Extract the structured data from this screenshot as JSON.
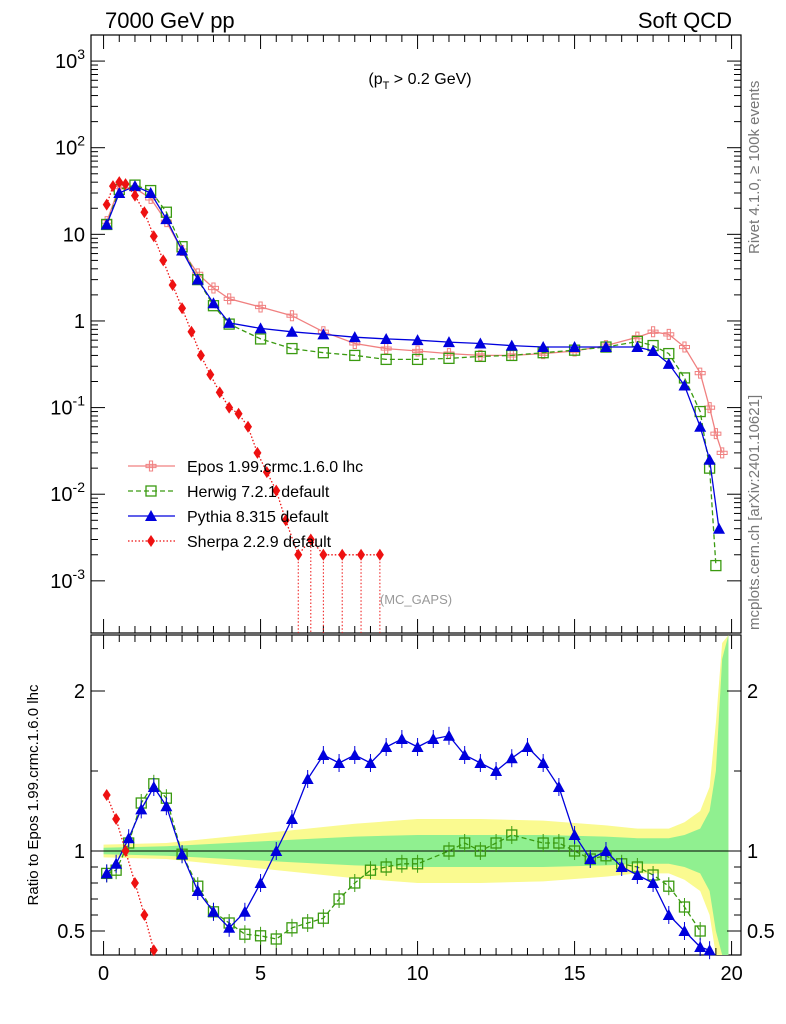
{
  "header": {
    "left": "7000 GeV pp",
    "right": "Soft QCD"
  },
  "side_labels": {
    "rivet": "Rivet 4.1.0, ≥ 100k events",
    "mcplots": "mcplots.cern.ch [arXiv:2401.10621]"
  },
  "colors": {
    "epos": "#f08080",
    "herwig": "#3a9a10",
    "pythia": "#0000dd",
    "sherpa": "#ee1111",
    "band_inner": "#90f090",
    "band_outer": "#fafa90"
  },
  "chart_data": [
    {
      "type": "line",
      "yscale": "log",
      "annotation": "(p_T > 0.2 GeV)",
      "watermark": "(MC_GAPS)",
      "xlim": [
        -0.4,
        20.3
      ],
      "ylim": [
        0.00025,
        2000
      ],
      "ytick_labels": [
        "10^{-3}",
        "10^{-2}",
        "10^{-1}",
        "1",
        "10",
        "10^{2}",
        "10^{3}"
      ],
      "legend_position": "lower-left",
      "series": [
        {
          "name": "Epos 1.99.crmc.1.6.0 lhc",
          "marker": "cross",
          "x": [
            0.1,
            0.5,
            1.0,
            1.5,
            2.0,
            2.5,
            3.0,
            3.5,
            4.0,
            5.0,
            6.0,
            7.0,
            8.0,
            9.0,
            10.0,
            11.0,
            12.0,
            13.0,
            14.0,
            15.0,
            16.0,
            17.0,
            17.5,
            18.0,
            18.5,
            19.0,
            19.3,
            19.5,
            19.7
          ],
          "y": [
            14,
            35,
            34,
            26,
            14,
            6.5,
            3.5,
            2.4,
            1.8,
            1.45,
            1.15,
            0.75,
            0.55,
            0.48,
            0.45,
            0.42,
            0.4,
            0.4,
            0.42,
            0.45,
            0.52,
            0.65,
            0.75,
            0.7,
            0.5,
            0.25,
            0.1,
            0.05,
            0.03
          ]
        },
        {
          "name": "Herwig 7.2.1 default",
          "marker": "open-square",
          "x": [
            0.1,
            0.5,
            1.0,
            1.5,
            2.0,
            2.5,
            3.0,
            3.5,
            4.0,
            5.0,
            6.0,
            7.0,
            8.0,
            9.0,
            10.0,
            11.0,
            12.0,
            13.0,
            14.0,
            15.0,
            16.0,
            17.0,
            17.5,
            18.0,
            18.5,
            19.0,
            19.3,
            19.5
          ],
          "y": [
            13,
            33,
            37,
            32,
            18,
            7.2,
            3.0,
            1.5,
            0.92,
            0.62,
            0.48,
            0.43,
            0.4,
            0.36,
            0.36,
            0.37,
            0.39,
            0.4,
            0.43,
            0.46,
            0.5,
            0.58,
            0.52,
            0.42,
            0.22,
            0.09,
            0.02,
            0.0015
          ]
        },
        {
          "name": "Pythia 8.315 default",
          "marker": "filled-triangle",
          "x": [
            0.1,
            0.5,
            1.0,
            1.5,
            2.0,
            2.5,
            3.0,
            3.5,
            4.0,
            5.0,
            6.0,
            7.0,
            8.0,
            9.0,
            10.0,
            11.0,
            12.0,
            13.0,
            14.0,
            15.0,
            16.0,
            17.0,
            17.5,
            18.0,
            18.5,
            19.0,
            19.3,
            19.6
          ],
          "y": [
            13,
            30,
            36,
            30,
            15,
            6.5,
            3.0,
            1.6,
            0.95,
            0.82,
            0.75,
            0.7,
            0.65,
            0.62,
            0.6,
            0.57,
            0.55,
            0.52,
            0.5,
            0.5,
            0.5,
            0.5,
            0.45,
            0.32,
            0.18,
            0.06,
            0.025,
            0.004
          ]
        },
        {
          "name": "Sherpa 2.2.9 default",
          "marker": "filled-diamond",
          "x": [
            0.1,
            0.3,
            0.5,
            0.7,
            1.0,
            1.3,
            1.6,
            1.9,
            2.2,
            2.5,
            2.8,
            3.1,
            3.4,
            3.7,
            4.0,
            4.3,
            4.6,
            4.9,
            5.2,
            5.5,
            5.8,
            6.2,
            6.6,
            7.0,
            7.6,
            8.2,
            8.8
          ],
          "y": [
            22,
            36,
            40,
            38,
            28,
            18,
            9.5,
            5.0,
            2.6,
            1.4,
            0.75,
            0.4,
            0.24,
            0.15,
            0.1,
            0.085,
            0.06,
            0.03,
            0.018,
            0.011,
            0.005,
            0.002,
            0.003,
            0.002,
            0.002,
            0.002,
            0.002
          ]
        }
      ]
    },
    {
      "type": "line",
      "ylabel": "Ratio to Epos 1.99.crmc.1.6.0 lhc",
      "xlim": [
        -0.4,
        20.3
      ],
      "ylim": [
        0.35,
        2.35
      ],
      "xtick_labels": [
        "0",
        "5",
        "10",
        "15",
        "20"
      ],
      "ytick_labels": [
        "0.5",
        "1",
        "2"
      ],
      "reference_band": {
        "x": [
          0,
          2,
          4,
          6,
          8,
          10,
          12,
          14,
          16,
          17,
          18,
          18.5,
          19,
          19.3,
          19.5,
          19.7,
          19.9
        ],
        "inner": [
          0.02,
          0.03,
          0.05,
          0.07,
          0.09,
          0.1,
          0.1,
          0.1,
          0.09,
          0.08,
          0.08,
          0.1,
          0.14,
          0.25,
          0.5,
          1.2,
          1.5
        ],
        "outer": [
          0.04,
          0.05,
          0.09,
          0.13,
          0.17,
          0.2,
          0.2,
          0.19,
          0.16,
          0.14,
          0.14,
          0.18,
          0.25,
          0.4,
          0.8,
          1.3,
          1.5
        ]
      },
      "series": [
        {
          "name": "Herwig 7.2.1 default",
          "x": [
            0.1,
            0.4,
            0.8,
            1.2,
            1.6,
            2.0,
            2.5,
            3.0,
            3.5,
            4.0,
            4.5,
            5.0,
            5.5,
            6.0,
            6.5,
            7.0,
            7.5,
            8.0,
            8.5,
            9.0,
            9.5,
            10.0,
            11.0,
            11.5,
            12.0,
            12.5,
            13.0,
            14.0,
            14.5,
            15.0,
            15.5,
            16.0,
            16.5,
            17.0,
            17.5,
            18.0,
            18.5,
            19.0
          ],
          "y": [
            0.86,
            0.88,
            1.05,
            1.3,
            1.42,
            1.33,
            0.98,
            0.78,
            0.62,
            0.55,
            0.48,
            0.47,
            0.45,
            0.52,
            0.55,
            0.58,
            0.7,
            0.8,
            0.88,
            0.9,
            0.92,
            0.92,
            1.0,
            1.05,
            1.0,
            1.05,
            1.1,
            1.05,
            1.05,
            1.0,
            0.95,
            0.97,
            0.92,
            0.9,
            0.85,
            0.78,
            0.65,
            0.5
          ]
        },
        {
          "name": "Pythia 8.315 default",
          "x": [
            0.1,
            0.4,
            0.8,
            1.2,
            1.6,
            2.0,
            2.5,
            3.0,
            3.5,
            4.0,
            4.5,
            5.0,
            5.5,
            6.0,
            6.5,
            7.0,
            7.5,
            8.0,
            8.5,
            9.0,
            9.5,
            10.0,
            10.5,
            11.0,
            11.5,
            12.0,
            12.5,
            13.0,
            13.5,
            14.0,
            14.5,
            15.0,
            15.5,
            16.0,
            16.5,
            17.0,
            17.5,
            18.0,
            18.5,
            19.0,
            19.3
          ],
          "y": [
            0.86,
            0.92,
            1.08,
            1.26,
            1.4,
            1.28,
            0.98,
            0.75,
            0.62,
            0.52,
            0.62,
            0.8,
            1.0,
            1.2,
            1.45,
            1.6,
            1.55,
            1.6,
            1.55,
            1.65,
            1.7,
            1.65,
            1.7,
            1.72,
            1.6,
            1.55,
            1.5,
            1.58,
            1.65,
            1.55,
            1.4,
            1.1,
            0.95,
            1.0,
            0.9,
            0.85,
            0.8,
            0.6,
            0.5,
            0.4,
            0.38
          ]
        },
        {
          "name": "Sherpa 2.2.9 default",
          "x": [
            0.1,
            0.4,
            0.7,
            1.0,
            1.3,
            1.6
          ],
          "y": [
            1.35,
            1.2,
            1.0,
            0.8,
            0.6,
            0.38
          ]
        }
      ]
    }
  ]
}
